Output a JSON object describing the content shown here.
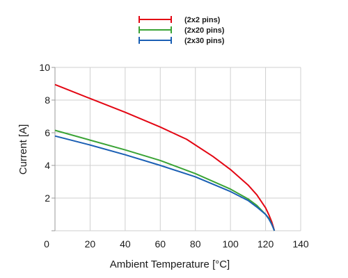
{
  "chart_data": {
    "type": "line",
    "xlabel": "Ambient Temperature [°C]",
    "ylabel": "Current [A]",
    "xlim": [
      0,
      140
    ],
    "ylim": [
      0,
      10
    ],
    "x_ticks": [
      0,
      20,
      40,
      60,
      80,
      100,
      120,
      140
    ],
    "y_ticks": [
      2,
      4,
      6,
      8,
      10
    ],
    "grid": true,
    "legend_position": "top-center",
    "series": [
      {
        "name": "(2x2 pins)",
        "color": "#e30613",
        "points": [
          [
            0,
            8.95
          ],
          [
            20,
            8.1
          ],
          [
            40,
            7.25
          ],
          [
            60,
            6.35
          ],
          [
            75,
            5.6
          ],
          [
            80,
            5.25
          ],
          [
            90,
            4.55
          ],
          [
            100,
            3.75
          ],
          [
            110,
            2.8
          ],
          [
            115,
            2.2
          ],
          [
            120,
            1.4
          ],
          [
            122,
            0.95
          ],
          [
            123.5,
            0.55
          ],
          [
            124.5,
            0.2
          ],
          [
            125,
            0.0
          ]
        ]
      },
      {
        "name": "(2x20 pins)",
        "color": "#3aa335",
        "points": [
          [
            0,
            6.15
          ],
          [
            20,
            5.55
          ],
          [
            40,
            4.95
          ],
          [
            60,
            4.3
          ],
          [
            80,
            3.5
          ],
          [
            100,
            2.55
          ],
          [
            110,
            1.95
          ],
          [
            115,
            1.55
          ],
          [
            120,
            1.0
          ],
          [
            122,
            0.75
          ],
          [
            123.5,
            0.4
          ],
          [
            124.5,
            0.15
          ],
          [
            125,
            0.0
          ]
        ]
      },
      {
        "name": "(2x30 pins)",
        "color": "#1a5fb4",
        "points": [
          [
            0,
            5.8
          ],
          [
            20,
            5.25
          ],
          [
            40,
            4.65
          ],
          [
            60,
            4.0
          ],
          [
            80,
            3.3
          ],
          [
            100,
            2.4
          ],
          [
            110,
            1.85
          ],
          [
            115,
            1.45
          ],
          [
            120,
            1.0
          ],
          [
            122,
            0.7
          ],
          [
            123.5,
            0.4
          ],
          [
            124.5,
            0.15
          ],
          [
            125,
            0.0
          ]
        ]
      }
    ]
  }
}
